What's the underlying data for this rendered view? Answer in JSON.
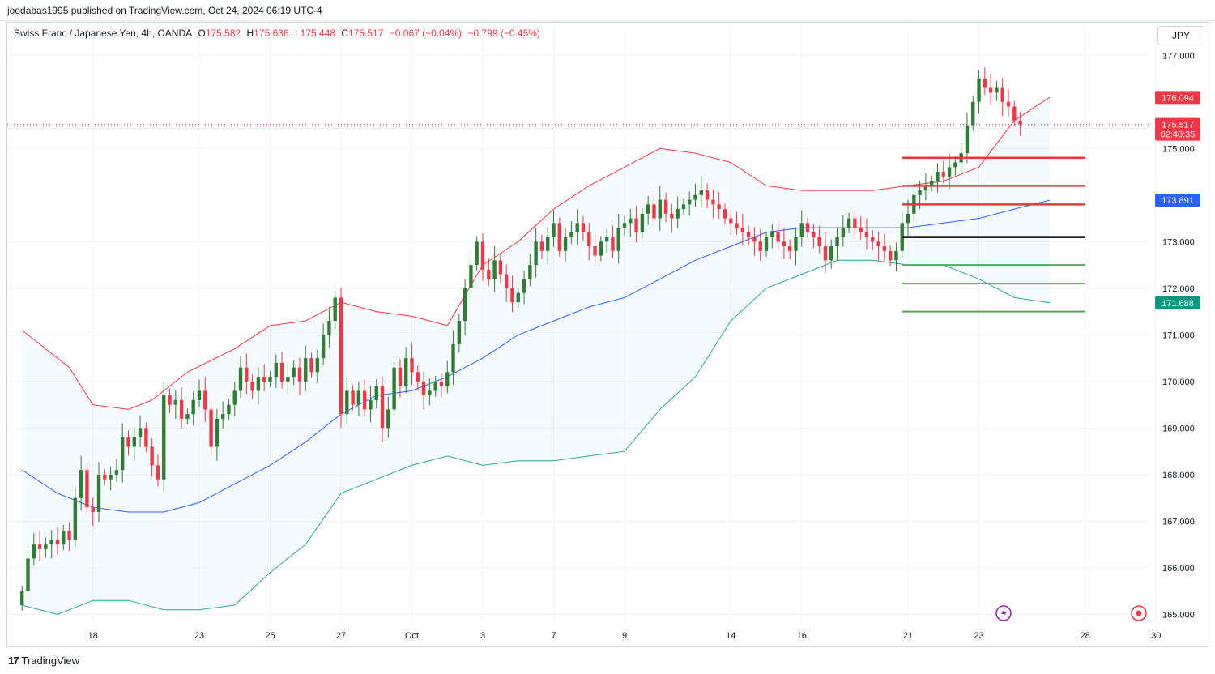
{
  "header": {
    "published": "joodabas1995 published on TradingView.com, Oct 24, 2024 06:19 UTC-4"
  },
  "legend": {
    "symbol": "Swiss Franc / Japanese Yen, 4h, OANDA",
    "open_label": "O",
    "open": "175.582",
    "high_label": "H",
    "high": "175.636",
    "low_label": "L",
    "low": "175.448",
    "close_label": "C",
    "close": "175.517",
    "change": "−0.067 (−0.04%)",
    "change2": "−0.799 (−0.45%)"
  },
  "currency_button": "JPY",
  "brand": {
    "logo": "17",
    "name": "TradingView"
  },
  "colors": {
    "up": "#2e7d32",
    "down": "#f23645",
    "upper_band": "#f23645",
    "lower_band": "#26a69a",
    "basis": "#2962ff",
    "band_fill": "#2196f3",
    "support": "#4caf50",
    "resistance": "#e53935",
    "pivot": "#000000"
  },
  "chart_data": {
    "type": "candlestick",
    "y_axis": {
      "ylim": [
        164.8,
        177.7
      ],
      "ticks": [
        "165.000",
        "166.000",
        "167.000",
        "168.000",
        "169.000",
        "170.000",
        "171.000",
        "172.000",
        "173.000",
        "175.000",
        "177.000"
      ],
      "price_labels": [
        {
          "value": "176.094",
          "bg": "#f23645"
        },
        {
          "value": "175.517",
          "sub": "02:40:35",
          "bg": "#f23645"
        },
        {
          "value": "173.891",
          "bg": "#2962ff"
        },
        {
          "value": "171.688",
          "bg": "#089981"
        }
      ],
      "last_price": 175.517
    },
    "x_axis": {
      "index_range": [
        -2.5,
        191
      ],
      "ticks": [
        {
          "label": "18",
          "i": 12
        },
        {
          "label": "23",
          "i": 30
        },
        {
          "label": "25",
          "i": 42
        },
        {
          "label": "27",
          "i": 54
        },
        {
          "label": "Oct",
          "i": 66
        },
        {
          "label": "3",
          "i": 78
        },
        {
          "label": "7",
          "i": 90
        },
        {
          "label": "9",
          "i": 102
        },
        {
          "label": "14",
          "i": 120
        },
        {
          "label": "16",
          "i": 132
        },
        {
          "label": "21",
          "i": 150
        },
        {
          "label": "23",
          "i": 162
        },
        {
          "label": "28",
          "i": 180
        },
        {
          "label": "30",
          "i": 192
        }
      ]
    },
    "candles_close": [
      165.5,
      166.2,
      166.5,
      166.4,
      166.5,
      166.6,
      166.5,
      166.8,
      166.6,
      167.5,
      168.1,
      167.3,
      167.2,
      168.0,
      167.9,
      168.0,
      168.1,
      168.8,
      168.6,
      168.8,
      169.0,
      168.6,
      168.2,
      167.9,
      169.7,
      169.5,
      169.6,
      169.2,
      169.3,
      169.6,
      169.8,
      169.4,
      168.6,
      169.2,
      169.3,
      169.5,
      169.8,
      170.3,
      170.0,
      169.8,
      170.1,
      170.0,
      170.1,
      170.4,
      170.0,
      170.1,
      170.3,
      170.0,
      170.5,
      170.2,
      170.5,
      171.0,
      171.3,
      171.8,
      169.3,
      169.8,
      169.5,
      169.8,
      169.4,
      169.6,
      169.9,
      169.0,
      169.4,
      170.3,
      169.9,
      170.5,
      170.2,
      170.0,
      169.7,
      169.8,
      170.0,
      169.9,
      170.2,
      170.8,
      171.3,
      172.0,
      172.5,
      173.0,
      172.4,
      172.2,
      172.6,
      172.3,
      172.0,
      171.7,
      171.9,
      172.2,
      172.5,
      173.0,
      172.8,
      173.1,
      173.4,
      172.8,
      173.1,
      173.2,
      173.4,
      173.2,
      172.9,
      172.7,
      173.0,
      173.1,
      172.8,
      173.3,
      173.4,
      173.5,
      173.2,
      173.6,
      173.8,
      173.5,
      173.9,
      173.6,
      173.5,
      173.7,
      173.8,
      173.9,
      174.0,
      174.1,
      173.9,
      173.8,
      173.7,
      173.5,
      173.4,
      173.3,
      173.2,
      173.1,
      173.0,
      172.8,
      173.1,
      173.2,
      173.0,
      172.9,
      172.8,
      173.1,
      173.4,
      173.2,
      173.1,
      172.9,
      172.6,
      172.9,
      173.1,
      173.3,
      173.5,
      173.3,
      173.2,
      173.1,
      173.0,
      172.9,
      172.8,
      172.6,
      172.8,
      173.4,
      173.6,
      174.0,
      174.1,
      174.2,
      174.3,
      174.5,
      174.4,
      174.6,
      174.7,
      174.9,
      175.5,
      176.0,
      176.5,
      176.3,
      176.2,
      176.3,
      176.0,
      175.9,
      175.6,
      175.517
    ],
    "bollinger": {
      "upper": [
        [
          0,
          171.1
        ],
        [
          8,
          170.3
        ],
        [
          12,
          169.5
        ],
        [
          18,
          169.4
        ],
        [
          22,
          169.6
        ],
        [
          28,
          170.2
        ],
        [
          36,
          170.7
        ],
        [
          42,
          171.2
        ],
        [
          48,
          171.3
        ],
        [
          54,
          171.7
        ],
        [
          60,
          171.5
        ],
        [
          66,
          171.4
        ],
        [
          72,
          171.2
        ],
        [
          78,
          172.5
        ],
        [
          84,
          173.0
        ],
        [
          90,
          173.7
        ],
        [
          96,
          174.2
        ],
        [
          102,
          174.6
        ],
        [
          108,
          175.0
        ],
        [
          114,
          174.9
        ],
        [
          120,
          174.7
        ],
        [
          126,
          174.2
        ],
        [
          132,
          174.1
        ],
        [
          138,
          174.1
        ],
        [
          144,
          174.1
        ],
        [
          150,
          174.2
        ],
        [
          156,
          174.3
        ],
        [
          162,
          174.6
        ],
        [
          168,
          175.6
        ],
        [
          174,
          176.1
        ]
      ],
      "basis": [
        [
          0,
          168.1
        ],
        [
          6,
          167.6
        ],
        [
          12,
          167.3
        ],
        [
          18,
          167.2
        ],
        [
          24,
          167.2
        ],
        [
          30,
          167.4
        ],
        [
          36,
          167.8
        ],
        [
          42,
          168.2
        ],
        [
          48,
          168.7
        ],
        [
          54,
          169.3
        ],
        [
          60,
          169.7
        ],
        [
          66,
          169.8
        ],
        [
          72,
          170.1
        ],
        [
          78,
          170.5
        ],
        [
          84,
          171.0
        ],
        [
          90,
          171.3
        ],
        [
          96,
          171.6
        ],
        [
          102,
          171.8
        ],
        [
          108,
          172.2
        ],
        [
          114,
          172.6
        ],
        [
          120,
          172.9
        ],
        [
          126,
          173.2
        ],
        [
          132,
          173.3
        ],
        [
          138,
          173.3
        ],
        [
          144,
          173.3
        ],
        [
          150,
          173.3
        ],
        [
          156,
          173.4
        ],
        [
          162,
          173.5
        ],
        [
          168,
          173.7
        ],
        [
          174,
          173.891
        ]
      ],
      "lower": [
        [
          0,
          165.2
        ],
        [
          6,
          165.0
        ],
        [
          12,
          165.3
        ],
        [
          18,
          165.3
        ],
        [
          24,
          165.1
        ],
        [
          30,
          165.1
        ],
        [
          36,
          165.2
        ],
        [
          42,
          165.9
        ],
        [
          48,
          166.5
        ],
        [
          54,
          167.6
        ],
        [
          60,
          167.9
        ],
        [
          66,
          168.2
        ],
        [
          72,
          168.4
        ],
        [
          78,
          168.2
        ],
        [
          84,
          168.3
        ],
        [
          90,
          168.3
        ],
        [
          96,
          168.4
        ],
        [
          102,
          168.5
        ],
        [
          108,
          169.4
        ],
        [
          114,
          170.1
        ],
        [
          120,
          171.3
        ],
        [
          126,
          172.0
        ],
        [
          132,
          172.3
        ],
        [
          138,
          172.6
        ],
        [
          144,
          172.6
        ],
        [
          150,
          172.5
        ],
        [
          156,
          172.5
        ],
        [
          162,
          172.2
        ],
        [
          168,
          171.8
        ],
        [
          174,
          171.688
        ]
      ]
    },
    "levels": {
      "resistance": [
        174.8,
        174.2,
        173.8
      ],
      "pivot": 173.1,
      "support": [
        172.5,
        172.1,
        171.5
      ],
      "from_index": 149,
      "to_index": 180
    }
  }
}
